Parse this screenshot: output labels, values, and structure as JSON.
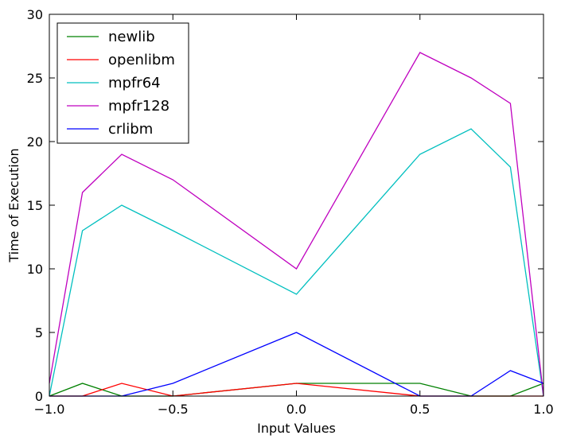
{
  "chart_data": {
    "type": "line",
    "title": "",
    "xlabel": "Input Values",
    "ylabel": "Time of Execution",
    "xlim": [
      -1.0,
      1.0
    ],
    "ylim": [
      0,
      30
    ],
    "xticks": [
      -1.0,
      -0.5,
      0.0,
      0.5,
      1.0
    ],
    "xtick_labels": [
      "−1.0",
      "−0.5",
      "0.0",
      "0.5",
      "1.0"
    ],
    "yticks": [
      0,
      5,
      10,
      15,
      20,
      25,
      30
    ],
    "ytick_labels": [
      "0",
      "5",
      "10",
      "15",
      "20",
      "25",
      "30"
    ],
    "grid": false,
    "legend_position": "top-left",
    "x": [
      -1.0,
      -0.866,
      -0.707,
      -0.5,
      0.0,
      0.5,
      0.707,
      0.866,
      1.0
    ],
    "series": [
      {
        "name": "newlib",
        "color": "#008000",
        "values": [
          0,
          1,
          0,
          0,
          1,
          1,
          0,
          0,
          1
        ]
      },
      {
        "name": "openlibm",
        "color": "#ff0000",
        "values": [
          0,
          0,
          1,
          0,
          1,
          0,
          0,
          0,
          0
        ]
      },
      {
        "name": "mpfr64",
        "color": "#00bfbf",
        "values": [
          0,
          13,
          15,
          13,
          8,
          19,
          21,
          18,
          0
        ]
      },
      {
        "name": "mpfr128",
        "color": "#bf00bf",
        "values": [
          1,
          16,
          19,
          17,
          10,
          27,
          25,
          23,
          0
        ]
      },
      {
        "name": "crlibm",
        "color": "#0000ff",
        "values": [
          0,
          0,
          0,
          1,
          5,
          0,
          0,
          2,
          1
        ]
      }
    ]
  }
}
